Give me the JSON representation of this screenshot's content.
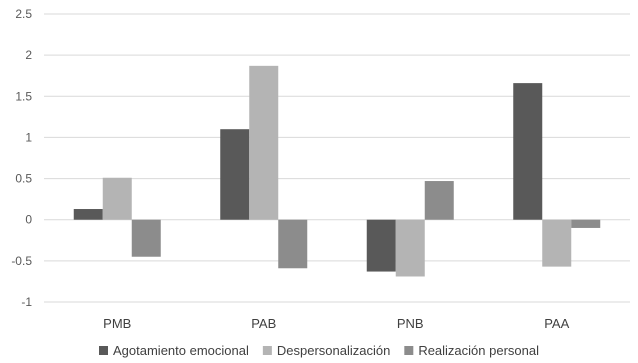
{
  "chart_data": {
    "type": "bar",
    "title": "",
    "xlabel": "",
    "ylabel": "",
    "categories": [
      "PMB",
      "PAB",
      "PNB",
      "PAA"
    ],
    "series": [
      {
        "name": "Agotamiento emocional",
        "color": "#595959",
        "values": [
          0.13,
          1.1,
          -0.63,
          1.66
        ]
      },
      {
        "name": "Despersonalización",
        "color": "#b4b4b4",
        "values": [
          0.51,
          1.87,
          -0.69,
          -0.57
        ]
      },
      {
        "name": "Realización personal",
        "color": "#8c8c8c",
        "values": [
          -0.45,
          -0.59,
          0.47,
          -0.1
        ]
      }
    ],
    "ylim": [
      -1,
      2.5
    ],
    "yticks": [
      "2.5",
      "2",
      "1.5",
      "1",
      "0.5",
      "0",
      "-0.5",
      "-1"
    ],
    "grid": true,
    "legend_position": "bottom"
  }
}
